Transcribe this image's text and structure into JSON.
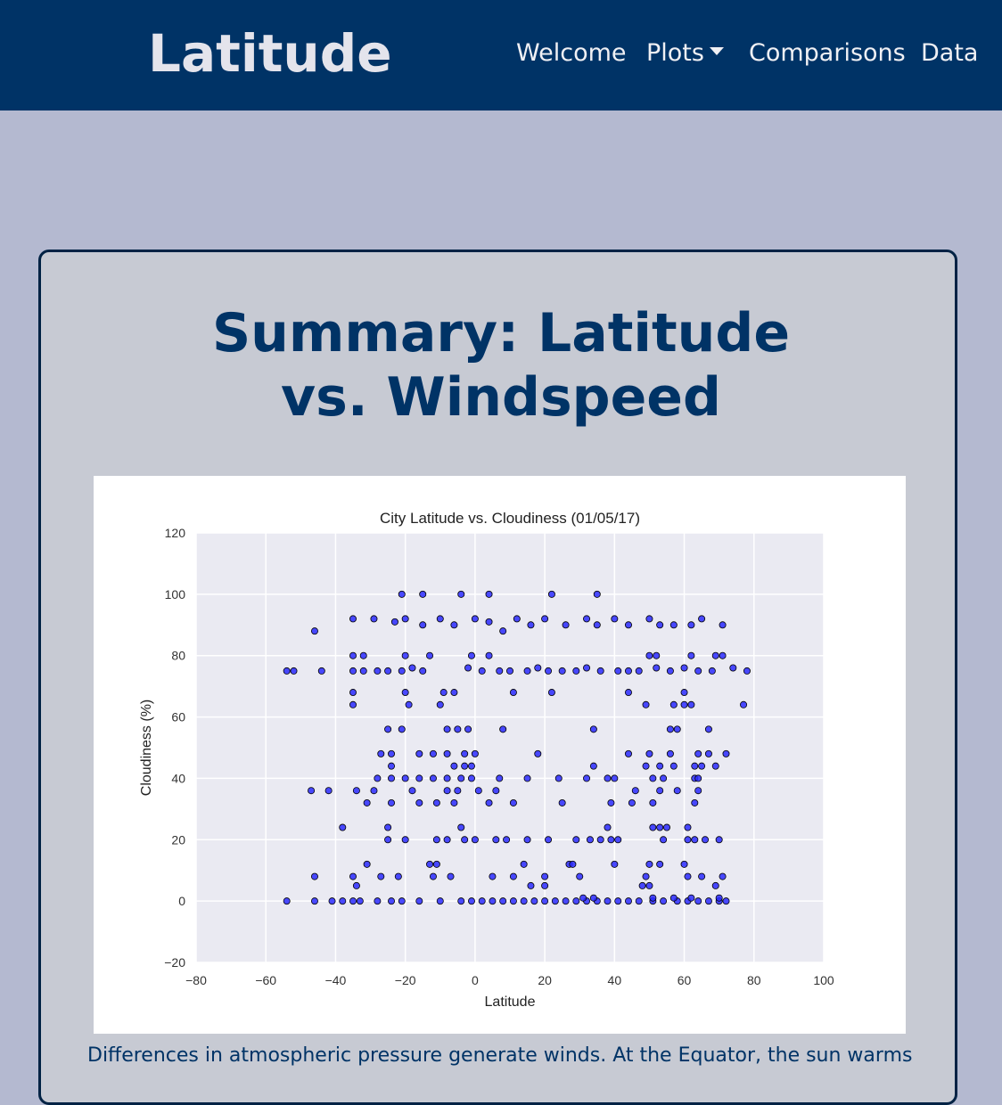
{
  "nav": {
    "brand": "Latitude",
    "items": [
      {
        "label": "Welcome"
      },
      {
        "label": "Plots",
        "dropdown": true
      },
      {
        "label": "Comparisons"
      },
      {
        "label": "Data"
      }
    ]
  },
  "colors": {
    "navbar": "#003366",
    "page_bg": "#b4b9d0",
    "card_bg": "#c7cad3",
    "title": "#003366",
    "plot_bg": "#eaeaf2",
    "marker": "#2a2aff"
  },
  "card": {
    "title": "Summary: Latitude vs. Windspeed",
    "description": "Differences in atmospheric pressure generate winds. At the Equator, the sun warms"
  },
  "chart_data": {
    "type": "scatter",
    "title": "City Latitude vs. Cloudiness (01/05/17)",
    "xlabel": "Latitude",
    "ylabel": "Cloudiness (%)",
    "xlim": [
      -80,
      100
    ],
    "ylim": [
      -20,
      120
    ],
    "xticks": [
      -80,
      -60,
      -40,
      -20,
      0,
      20,
      40,
      60,
      80,
      100
    ],
    "yticks": [
      -20,
      0,
      20,
      40,
      60,
      80,
      100,
      120
    ],
    "grid": true,
    "series": [
      {
        "points": [
          [
            -54,
            75
          ],
          [
            -52,
            75
          ],
          [
            -44,
            75
          ],
          [
            -35,
            75
          ],
          [
            -32,
            75
          ],
          [
            -28,
            75
          ],
          [
            -25,
            75
          ],
          [
            -21,
            75
          ],
          [
            -18,
            76
          ],
          [
            -15,
            75
          ],
          [
            -2,
            76
          ],
          [
            2,
            75
          ],
          [
            7,
            75
          ],
          [
            10,
            75
          ],
          [
            15,
            75
          ],
          [
            18,
            76
          ],
          [
            21,
            75
          ],
          [
            25,
            75
          ],
          [
            29,
            75
          ],
          [
            32,
            76
          ],
          [
            36,
            75
          ],
          [
            41,
            75
          ],
          [
            44,
            75
          ],
          [
            47,
            75
          ],
          [
            52,
            76
          ],
          [
            56,
            75
          ],
          [
            60,
            76
          ],
          [
            64,
            75
          ],
          [
            68,
            75
          ],
          [
            74,
            76
          ],
          [
            78,
            75
          ],
          [
            -35,
            92
          ],
          [
            -29,
            92
          ],
          [
            -23,
            91
          ],
          [
            -20,
            92
          ],
          [
            -15,
            90
          ],
          [
            -10,
            92
          ],
          [
            -6,
            90
          ],
          [
            0,
            92
          ],
          [
            4,
            91
          ],
          [
            8,
            88
          ],
          [
            12,
            92
          ],
          [
            16,
            90
          ],
          [
            20,
            92
          ],
          [
            26,
            90
          ],
          [
            32,
            92
          ],
          [
            35,
            90
          ],
          [
            40,
            92
          ],
          [
            44,
            90
          ],
          [
            50,
            92
          ],
          [
            53,
            90
          ],
          [
            57,
            90
          ],
          [
            62,
            90
          ],
          [
            65,
            92
          ],
          [
            71,
            90
          ],
          [
            -21,
            100
          ],
          [
            -15,
            100
          ],
          [
            -4,
            100
          ],
          [
            4,
            100
          ],
          [
            22,
            100
          ],
          [
            35,
            100
          ],
          [
            -46,
            88
          ],
          [
            -35,
            80
          ],
          [
            -32,
            80
          ],
          [
            -20,
            80
          ],
          [
            -13,
            80
          ],
          [
            -1,
            80
          ],
          [
            4,
            80
          ],
          [
            50,
            80
          ],
          [
            52,
            80
          ],
          [
            62,
            80
          ],
          [
            69,
            80
          ],
          [
            71,
            80
          ],
          [
            -35,
            68
          ],
          [
            -20,
            68
          ],
          [
            -9,
            68
          ],
          [
            -6,
            68
          ],
          [
            11,
            68
          ],
          [
            22,
            68
          ],
          [
            44,
            68
          ],
          [
            60,
            68
          ],
          [
            -35,
            64
          ],
          [
            -19,
            64
          ],
          [
            -10,
            64
          ],
          [
            49,
            64
          ],
          [
            57,
            64
          ],
          [
            60,
            64
          ],
          [
            62,
            64
          ],
          [
            77,
            64
          ],
          [
            -25,
            56
          ],
          [
            -21,
            56
          ],
          [
            -8,
            56
          ],
          [
            -5,
            56
          ],
          [
            -2,
            56
          ],
          [
            8,
            56
          ],
          [
            34,
            56
          ],
          [
            56,
            56
          ],
          [
            58,
            56
          ],
          [
            67,
            56
          ],
          [
            -27,
            48
          ],
          [
            -24,
            48
          ],
          [
            -16,
            48
          ],
          [
            -12,
            48
          ],
          [
            -8,
            48
          ],
          [
            -3,
            48
          ],
          [
            0,
            48
          ],
          [
            18,
            48
          ],
          [
            44,
            48
          ],
          [
            50,
            48
          ],
          [
            56,
            48
          ],
          [
            64,
            48
          ],
          [
            67,
            48
          ],
          [
            72,
            48
          ],
          [
            -24,
            44
          ],
          [
            -6,
            44
          ],
          [
            -3,
            44
          ],
          [
            -1,
            44
          ],
          [
            34,
            44
          ],
          [
            49,
            44
          ],
          [
            53,
            44
          ],
          [
            57,
            44
          ],
          [
            63,
            44
          ],
          [
            65,
            44
          ],
          [
            69,
            44
          ],
          [
            -28,
            40
          ],
          [
            -24,
            40
          ],
          [
            -20,
            40
          ],
          [
            -16,
            40
          ],
          [
            -12,
            40
          ],
          [
            -8,
            40
          ],
          [
            -4,
            40
          ],
          [
            -1,
            40
          ],
          [
            7,
            40
          ],
          [
            15,
            40
          ],
          [
            24,
            40
          ],
          [
            32,
            40
          ],
          [
            38,
            40
          ],
          [
            40,
            40
          ],
          [
            51,
            40
          ],
          [
            54,
            40
          ],
          [
            63,
            40
          ],
          [
            64,
            40
          ],
          [
            -47,
            36
          ],
          [
            -42,
            36
          ],
          [
            -34,
            36
          ],
          [
            -29,
            36
          ],
          [
            -18,
            36
          ],
          [
            -8,
            36
          ],
          [
            -5,
            36
          ],
          [
            1,
            36
          ],
          [
            6,
            36
          ],
          [
            46,
            36
          ],
          [
            53,
            36
          ],
          [
            58,
            36
          ],
          [
            64,
            36
          ],
          [
            -31,
            32
          ],
          [
            -24,
            32
          ],
          [
            -16,
            32
          ],
          [
            -11,
            32
          ],
          [
            -6,
            32
          ],
          [
            4,
            32
          ],
          [
            11,
            32
          ],
          [
            25,
            32
          ],
          [
            39,
            32
          ],
          [
            45,
            32
          ],
          [
            51,
            32
          ],
          [
            63,
            32
          ],
          [
            -38,
            24
          ],
          [
            -25,
            24
          ],
          [
            -4,
            24
          ],
          [
            38,
            24
          ],
          [
            51,
            24
          ],
          [
            53,
            24
          ],
          [
            55,
            24
          ],
          [
            61,
            24
          ],
          [
            -25,
            20
          ],
          [
            -20,
            20
          ],
          [
            -11,
            20
          ],
          [
            -8,
            20
          ],
          [
            -3,
            20
          ],
          [
            0,
            20
          ],
          [
            6,
            20
          ],
          [
            9,
            20
          ],
          [
            15,
            20
          ],
          [
            21,
            20
          ],
          [
            29,
            20
          ],
          [
            33,
            20
          ],
          [
            36,
            20
          ],
          [
            39,
            20
          ],
          [
            41,
            20
          ],
          [
            54,
            20
          ],
          [
            61,
            20
          ],
          [
            63,
            20
          ],
          [
            66,
            20
          ],
          [
            70,
            20
          ],
          [
            -31,
            12
          ],
          [
            -13,
            12
          ],
          [
            -11,
            12
          ],
          [
            14,
            12
          ],
          [
            27,
            12
          ],
          [
            28,
            12
          ],
          [
            40,
            12
          ],
          [
            50,
            12
          ],
          [
            53,
            12
          ],
          [
            60,
            12
          ],
          [
            -46,
            8
          ],
          [
            -35,
            8
          ],
          [
            -27,
            8
          ],
          [
            -22,
            8
          ],
          [
            -12,
            8
          ],
          [
            -7,
            8
          ],
          [
            5,
            8
          ],
          [
            11,
            8
          ],
          [
            20,
            8
          ],
          [
            30,
            8
          ],
          [
            49,
            8
          ],
          [
            61,
            8
          ],
          [
            65,
            8
          ],
          [
            71,
            8
          ],
          [
            -34,
            5
          ],
          [
            16,
            5
          ],
          [
            20,
            5
          ],
          [
            48,
            5
          ],
          [
            50,
            5
          ],
          [
            69,
            5
          ],
          [
            -54,
            0
          ],
          [
            -46,
            0
          ],
          [
            -41,
            0
          ],
          [
            -38,
            0
          ],
          [
            -35,
            0
          ],
          [
            -33,
            0
          ],
          [
            -28,
            0
          ],
          [
            -24,
            0
          ],
          [
            -21,
            0
          ],
          [
            -16,
            0
          ],
          [
            -10,
            0
          ],
          [
            -4,
            0
          ],
          [
            -1,
            0
          ],
          [
            2,
            0
          ],
          [
            5,
            0
          ],
          [
            8,
            0
          ],
          [
            11,
            0
          ],
          [
            14,
            0
          ],
          [
            17,
            0
          ],
          [
            20,
            0
          ],
          [
            23,
            0
          ],
          [
            26,
            0
          ],
          [
            29,
            0
          ],
          [
            32,
            0
          ],
          [
            35,
            0
          ],
          [
            38,
            0
          ],
          [
            41,
            0
          ],
          [
            44,
            0
          ],
          [
            47,
            0
          ],
          [
            51,
            0
          ],
          [
            54,
            0
          ],
          [
            58,
            0
          ],
          [
            61,
            0
          ],
          [
            64,
            0
          ],
          [
            67,
            0
          ],
          [
            70,
            0
          ],
          [
            72,
            0
          ],
          [
            31,
            1
          ],
          [
            34,
            1
          ],
          [
            51,
            1
          ],
          [
            57,
            1
          ],
          [
            62,
            1
          ],
          [
            70,
            1
          ]
        ]
      }
    ]
  }
}
